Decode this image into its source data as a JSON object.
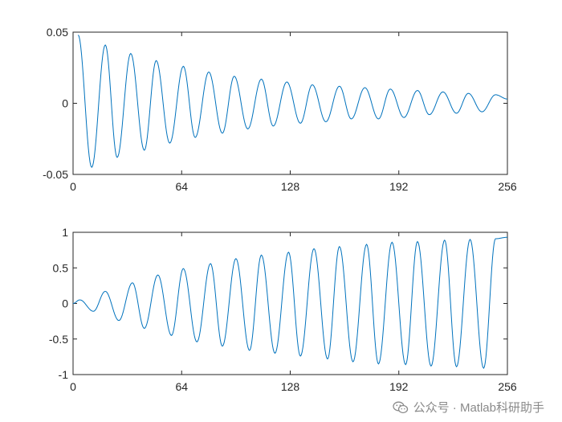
{
  "chart_data": [
    {
      "type": "line",
      "title": "",
      "xlabel": "",
      "ylabel": "",
      "xlim": [
        0,
        256
      ],
      "ylim": [
        -0.05,
        0.05
      ],
      "x_ticks": [
        0,
        64,
        128,
        192,
        256
      ],
      "x_tick_labels": [
        "0",
        "64",
        "128",
        "192",
        "256"
      ],
      "y_ticks": [
        -0.05,
        0,
        0.05
      ],
      "y_tick_labels": [
        "-0.05",
        "0",
        "0.05"
      ],
      "grid": false,
      "series": [
        {
          "color": "#0072bd",
          "period": 15.3,
          "x": [
            3,
            11,
            19,
            26,
            34,
            42,
            49,
            57,
            65,
            72,
            80,
            88,
            95,
            103,
            111,
            118,
            126,
            134,
            141,
            149,
            157,
            164,
            172,
            180,
            187,
            195,
            203,
            210,
            218,
            226,
            233,
            241,
            249,
            256
          ],
          "y": [
            0.048,
            -0.045,
            0.041,
            -0.038,
            0.035,
            -0.033,
            0.03,
            -0.028,
            0.026,
            -0.024,
            0.022,
            -0.021,
            0.019,
            -0.018,
            0.017,
            -0.016,
            0.015,
            -0.014,
            0.013,
            -0.013,
            0.012,
            -0.011,
            0.011,
            -0.011,
            0.01,
            -0.01,
            0.009,
            -0.008,
            0.008,
            -0.007,
            0.007,
            -0.006,
            0.006,
            0.003
          ]
        }
      ]
    },
    {
      "type": "line",
      "title": "",
      "xlabel": "",
      "ylabel": "",
      "xlim": [
        0,
        256
      ],
      "ylim": [
        -1,
        1
      ],
      "x_ticks": [
        0,
        64,
        128,
        192,
        256
      ],
      "x_tick_labels": [
        "0",
        "64",
        "128",
        "192",
        "256"
      ],
      "y_ticks": [
        -1,
        -0.5,
        0,
        0.5,
        1
      ],
      "y_tick_labels": [
        "-1",
        "-0.5",
        "0",
        "0.5",
        "1"
      ],
      "grid": false,
      "series": [
        {
          "color": "#0072bd",
          "period": 15.3,
          "x": [
            0,
            4,
            12,
            19,
            27,
            35,
            42,
            50,
            58,
            65,
            73,
            81,
            88,
            96,
            104,
            111,
            119,
            127,
            134,
            142,
            150,
            157,
            165,
            173,
            180,
            188,
            196,
            203,
            211,
            219,
            226,
            234,
            242,
            249,
            256
          ],
          "y": [
            0,
            0.05,
            -0.11,
            0.17,
            -0.24,
            0.29,
            -0.35,
            0.4,
            -0.45,
            0.49,
            -0.54,
            0.56,
            -0.6,
            0.63,
            -0.66,
            0.68,
            -0.7,
            0.72,
            -0.74,
            0.77,
            -0.78,
            0.8,
            -0.82,
            0.83,
            -0.85,
            0.86,
            -0.86,
            0.87,
            -0.88,
            0.89,
            -0.89,
            0.9,
            -0.91,
            0.91,
            0.93
          ]
        }
      ]
    }
  ],
  "watermark": {
    "icon": "wechat-icon",
    "text": "公众号 · Matlab科研助手"
  }
}
